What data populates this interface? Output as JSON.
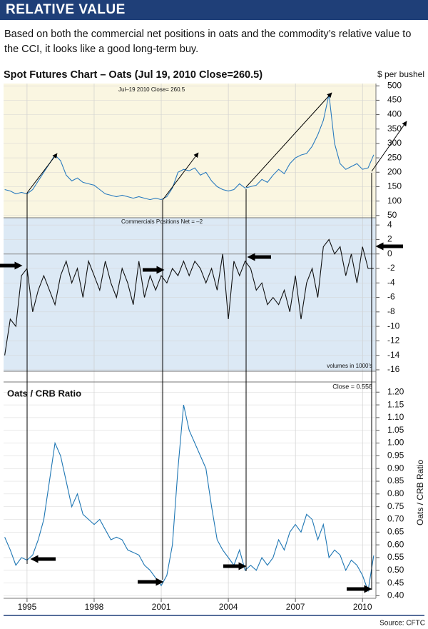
{
  "header": {
    "title": "RELATIVE VALUE",
    "intro": "Based on both the commercial net positions in oats and the commodity’s relative value to the CCI, it looks like a good long-term buy."
  },
  "source": "Source: CFTC",
  "chart_data": [
    {
      "type": "line",
      "title": "Spot Futures Chart – Oats  (Jul 19, 2010  Close=260.5)",
      "y_label": "$ per bushel",
      "annotation": "Jul–19  2010   Close= 260.5",
      "color": "#2a7bbf",
      "grid": true,
      "x": [
        1994.0,
        1994.25,
        1994.5,
        1994.75,
        1995.0,
        1995.25,
        1995.5,
        1995.75,
        1996.0,
        1996.25,
        1996.5,
        1996.75,
        1997.0,
        1997.25,
        1997.5,
        1997.75,
        1998.0,
        1998.25,
        1998.5,
        1998.75,
        1999.0,
        1999.25,
        1999.5,
        1999.75,
        2000.0,
        2000.25,
        2000.5,
        2000.75,
        2001.0,
        2001.25,
        2001.5,
        2001.75,
        2002.0,
        2002.25,
        2002.5,
        2002.75,
        2003.0,
        2003.25,
        2003.5,
        2003.75,
        2004.0,
        2004.25,
        2004.5,
        2004.75,
        2005.0,
        2005.25,
        2005.5,
        2005.75,
        2006.0,
        2006.25,
        2006.5,
        2006.75,
        2007.0,
        2007.25,
        2007.5,
        2007.75,
        2008.0,
        2008.25,
        2008.5,
        2008.75,
        2009.0,
        2009.25,
        2009.5,
        2009.75,
        2010.0,
        2010.25,
        2010.5
      ],
      "values": [
        140,
        135,
        125,
        130,
        125,
        140,
        170,
        200,
        230,
        260,
        240,
        190,
        170,
        180,
        165,
        160,
        155,
        140,
        125,
        120,
        115,
        120,
        115,
        110,
        115,
        110,
        105,
        110,
        105,
        115,
        145,
        200,
        210,
        205,
        215,
        190,
        200,
        170,
        150,
        140,
        135,
        140,
        160,
        145,
        150,
        155,
        175,
        165,
        190,
        210,
        195,
        230,
        250,
        260,
        265,
        290,
        330,
        380,
        470,
        300,
        230,
        210,
        220,
        230,
        210,
        215,
        260.5
      ],
      "ylim": [
        42,
        508
      ],
      "yticks": [
        50,
        100,
        150,
        200,
        250,
        300,
        350,
        400,
        450,
        500
      ]
    },
    {
      "type": "line",
      "annotation": "Commercials Positions Net = –2",
      "note": "volumes in 1000's",
      "color": "#111111",
      "grid": true,
      "x": [
        1994.0,
        1994.25,
        1994.5,
        1994.75,
        1995.0,
        1995.25,
        1995.5,
        1995.75,
        1996.0,
        1996.25,
        1996.5,
        1996.75,
        1997.0,
        1997.25,
        1997.5,
        1997.75,
        1998.0,
        1998.25,
        1998.5,
        1998.75,
        1999.0,
        1999.25,
        1999.5,
        1999.75,
        2000.0,
        2000.25,
        2000.5,
        2000.75,
        2001.0,
        2001.25,
        2001.5,
        2001.75,
        2002.0,
        2002.25,
        2002.5,
        2002.75,
        2003.0,
        2003.25,
        2003.5,
        2003.75,
        2004.0,
        2004.25,
        2004.5,
        2004.75,
        2005.0,
        2005.25,
        2005.5,
        2005.75,
        2006.0,
        2006.25,
        2006.5,
        2006.75,
        2007.0,
        2007.25,
        2007.5,
        2007.75,
        2008.0,
        2008.25,
        2008.5,
        2008.75,
        2009.0,
        2009.25,
        2009.5,
        2009.75,
        2010.0,
        2010.25,
        2010.5
      ],
      "values": [
        -14,
        -9,
        -10,
        -3,
        -2,
        -8,
        -5,
        -3,
        -5,
        -7,
        -3,
        -1,
        -4,
        -2,
        -6,
        -1,
        -3,
        -5,
        -1,
        -4,
        -6,
        -2,
        -4,
        -7,
        -1,
        -6,
        -3,
        -5,
        -3,
        -4,
        -2,
        -3,
        -1,
        -3,
        -1,
        -2,
        -4,
        -2,
        -5,
        0,
        -9,
        -1,
        -3,
        -1,
        -2,
        -5,
        -4,
        -7,
        -6,
        -7,
        -5,
        -8,
        -3,
        -9,
        -4,
        -2,
        -6,
        1,
        2,
        0,
        1,
        -3,
        0,
        -4,
        1,
        -2,
        -2
      ],
      "ylim": [
        -16.2,
        5
      ],
      "yticks": [
        4,
        2,
        0,
        -2,
        -4,
        -6,
        -8,
        -10,
        -12,
        -14,
        -16
      ]
    },
    {
      "type": "line",
      "title": "Oats / CRB Ratio",
      "y_label": "Oats / CRB Ratio",
      "annotation": "Close = 0.558",
      "color": "#1f77b4",
      "grid": true,
      "x": [
        1994.0,
        1994.25,
        1994.5,
        1994.75,
        1995.0,
        1995.25,
        1995.5,
        1995.75,
        1996.0,
        1996.25,
        1996.5,
        1996.75,
        1997.0,
        1997.25,
        1997.5,
        1997.75,
        1998.0,
        1998.25,
        1998.5,
        1998.75,
        1999.0,
        1999.25,
        1999.5,
        1999.75,
        2000.0,
        2000.25,
        2000.5,
        2000.75,
        2001.0,
        2001.25,
        2001.5,
        2001.75,
        2002.0,
        2002.25,
        2002.5,
        2002.75,
        2003.0,
        2003.25,
        2003.5,
        2003.75,
        2004.0,
        2004.25,
        2004.5,
        2004.75,
        2005.0,
        2005.25,
        2005.5,
        2005.75,
        2006.0,
        2006.25,
        2006.5,
        2006.75,
        2007.0,
        2007.25,
        2007.5,
        2007.75,
        2008.0,
        2008.25,
        2008.5,
        2008.75,
        2009.0,
        2009.25,
        2009.5,
        2009.75,
        2010.0,
        2010.25,
        2010.5
      ],
      "values": [
        0.63,
        0.58,
        0.52,
        0.55,
        0.54,
        0.56,
        0.62,
        0.7,
        0.85,
        1.0,
        0.95,
        0.85,
        0.75,
        0.8,
        0.72,
        0.7,
        0.68,
        0.7,
        0.66,
        0.62,
        0.63,
        0.62,
        0.58,
        0.57,
        0.56,
        0.52,
        0.5,
        0.47,
        0.44,
        0.48,
        0.6,
        0.9,
        1.15,
        1.05,
        1.0,
        0.95,
        0.9,
        0.75,
        0.62,
        0.58,
        0.55,
        0.52,
        0.58,
        0.5,
        0.52,
        0.5,
        0.55,
        0.52,
        0.55,
        0.62,
        0.58,
        0.65,
        0.68,
        0.65,
        0.72,
        0.7,
        0.62,
        0.68,
        0.55,
        0.58,
        0.56,
        0.5,
        0.54,
        0.52,
        0.48,
        0.42,
        0.558
      ],
      "ylim": [
        0.39,
        1.24
      ],
      "yticks": [
        {
          "value": 1.2,
          "label": "1.20"
        },
        1.15,
        {
          "value": 1.1,
          "label": "1.10"
        },
        1.05,
        {
          "value": 1.0,
          "label": "1.00"
        },
        0.95,
        {
          "value": 0.9,
          "label": "0.90"
        },
        0.85,
        {
          "value": 0.8,
          "label": "0.80"
        },
        0.75,
        {
          "value": 0.7,
          "label": "0.70"
        },
        0.65,
        {
          "value": 0.6,
          "label": "0.60"
        },
        0.55,
        {
          "value": 0.5,
          "label": "0.50"
        },
        0.45,
        {
          "value": 0.4,
          "label": "0.40"
        }
      ],
      "xlim": [
        1993.95,
        2010.6
      ],
      "xticks": [
        1995,
        1998,
        2001,
        2004,
        2007,
        2010
      ]
    }
  ]
}
